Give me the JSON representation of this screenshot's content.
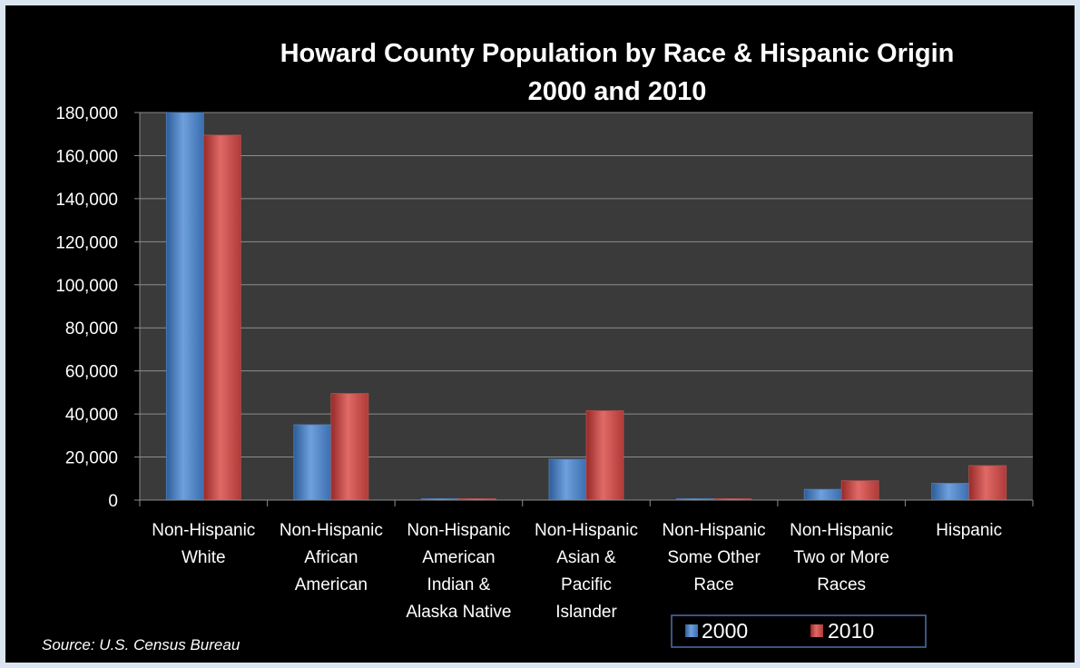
{
  "chart_data": {
    "type": "bar",
    "title": "Howard County Population by Race & Hispanic Origin",
    "subtitle": "2000 and 2010",
    "categories": [
      [
        "Non-Hispanic",
        "White"
      ],
      [
        "Non-Hispanic",
        "African",
        "American"
      ],
      [
        "Non-Hispanic",
        "American",
        "Indian &",
        "Alaska Native"
      ],
      [
        "Non-Hispanic",
        "Asian &",
        "Pacific",
        "Islander"
      ],
      [
        "Non-Hispanic",
        "Some Other",
        "Race"
      ],
      [
        "Non-Hispanic",
        "Two or More",
        "Races"
      ],
      [
        "Hispanic"
      ]
    ],
    "series": [
      {
        "name": "2000",
        "values": [
          180000,
          35000,
          300,
          19000,
          300,
          5000,
          7800
        ],
        "color": "#4f81bd"
      },
      {
        "name": "2010",
        "values": [
          169500,
          49500,
          300,
          41500,
          300,
          9000,
          16000
        ],
        "color": "#c0504d"
      }
    ],
    "y_ticks": [
      "0",
      "20,000",
      "40,000",
      "60,000",
      "80,000",
      "100,000",
      "120,000",
      "140,000",
      "160,000",
      "180,000"
    ],
    "ylim": [
      0,
      180000
    ],
    "grid": true,
    "legend_position": "bottom-right",
    "plot_background": "#3a3a3a",
    "source": "Source:  U.S. Census Bureau"
  }
}
